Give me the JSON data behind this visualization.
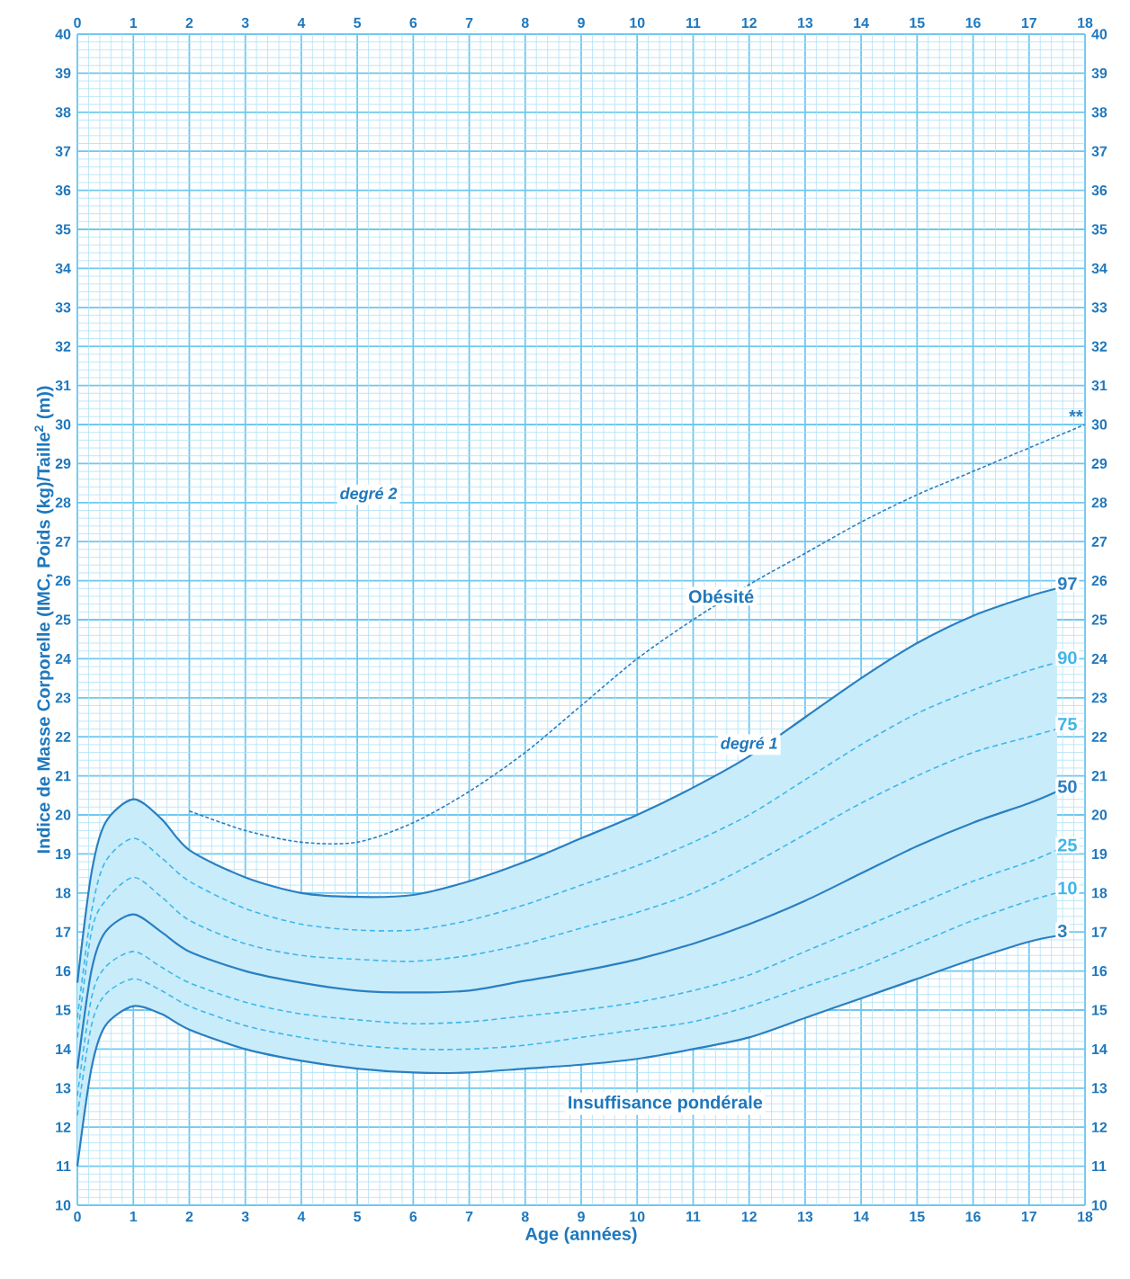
{
  "chart_data": {
    "type": "line",
    "xlabel": "Age (années)",
    "ylabel": "Indice de Masse Corporelle (IMC, Poids (kg)/Taille$^{2}$ (m))",
    "x": [
      0,
      0.25,
      0.5,
      1,
      1.5,
      2,
      3,
      4,
      5,
      6,
      7,
      8,
      9,
      10,
      11,
      12,
      13,
      14,
      15,
      16,
      17,
      17.5
    ],
    "series": [
      {
        "name": "97",
        "color": "#2a7fc1",
        "line_style": "solid",
        "values": [
          15.7,
          18.5,
          19.8,
          20.4,
          19.9,
          19.1,
          18.4,
          18.0,
          17.9,
          17.95,
          18.3,
          18.8,
          19.4,
          20.0,
          20.7,
          21.5,
          22.5,
          23.5,
          24.4,
          25.1,
          25.6,
          25.8
        ]
      },
      {
        "name": "90",
        "color": "#3fb6ea",
        "line_style": "dashed",
        "values": [
          14.8,
          17.5,
          18.8,
          19.4,
          18.9,
          18.3,
          17.6,
          17.2,
          17.05,
          17.05,
          17.3,
          17.7,
          18.2,
          18.7,
          19.3,
          20.0,
          20.9,
          21.8,
          22.6,
          23.2,
          23.7,
          23.9
        ]
      },
      {
        "name": "75",
        "color": "#3fb6ea",
        "line_style": "dashed",
        "values": [
          14.3,
          17.0,
          17.8,
          18.4,
          17.9,
          17.3,
          16.7,
          16.4,
          16.3,
          16.25,
          16.4,
          16.7,
          17.1,
          17.5,
          18.0,
          18.7,
          19.5,
          20.3,
          21.0,
          21.6,
          22.0,
          22.2
        ]
      },
      {
        "name": "50",
        "color": "#2a7fc1",
        "line_style": "solid",
        "values": [
          13.5,
          16.0,
          17.0,
          17.45,
          17.0,
          16.5,
          16.0,
          15.7,
          15.5,
          15.45,
          15.5,
          15.75,
          16.0,
          16.3,
          16.7,
          17.2,
          17.8,
          18.5,
          19.2,
          19.8,
          20.3,
          20.6
        ],
        "lower": [
          11.0,
          13.5,
          14.6,
          15.1,
          14.9,
          14.5,
          14.0,
          13.7,
          13.5,
          13.4,
          13.4,
          13.5,
          13.6,
          13.75,
          14.0,
          14.3,
          14.8,
          15.3,
          15.8,
          16.3,
          16.75,
          16.9
        ],
        "upper": [
          15.7,
          18.5,
          19.8,
          20.4,
          19.9,
          19.1,
          18.4,
          18.0,
          17.9,
          17.95,
          18.3,
          18.8,
          19.4,
          20.0,
          20.7,
          21.5,
          22.5,
          23.5,
          24.4,
          25.1,
          25.6,
          25.8
        ]
      },
      {
        "name": "25",
        "color": "#3fb6ea",
        "line_style": "dashed",
        "values": [
          12.8,
          15.3,
          16.1,
          16.5,
          16.1,
          15.7,
          15.2,
          14.9,
          14.75,
          14.65,
          14.7,
          14.85,
          15.0,
          15.2,
          15.5,
          15.9,
          16.5,
          17.1,
          17.7,
          18.3,
          18.8,
          19.1
        ]
      },
      {
        "name": "10",
        "color": "#3fb6ea",
        "line_style": "dashed",
        "values": [
          12.3,
          14.6,
          15.4,
          15.8,
          15.5,
          15.1,
          14.6,
          14.3,
          14.1,
          14.0,
          14.0,
          14.1,
          14.3,
          14.5,
          14.7,
          15.1,
          15.6,
          16.1,
          16.7,
          17.3,
          17.8,
          18.0
        ]
      },
      {
        "name": "3",
        "color": "#2a7fc1",
        "line_style": "solid",
        "values": [
          11.0,
          13.5,
          14.6,
          15.1,
          14.9,
          14.5,
          14.0,
          13.7,
          13.5,
          13.4,
          13.4,
          13.5,
          13.6,
          13.75,
          14.0,
          14.3,
          14.8,
          15.3,
          15.8,
          16.3,
          16.75,
          16.9
        ]
      },
      {
        "name": "**",
        "color": "#2a7fc1",
        "line_style": "dotted",
        "x": [
          2,
          3,
          4,
          5,
          6,
          7,
          8,
          9,
          10,
          11,
          12,
          13,
          14,
          15,
          16,
          17,
          18
        ],
        "values": [
          20.1,
          19.6,
          19.3,
          19.3,
          19.8,
          20.6,
          21.6,
          22.8,
          24.0,
          25.0,
          25.9,
          26.7,
          27.5,
          28.2,
          28.8,
          29.4,
          30.0
        ]
      }
    ],
    "annotations": [
      "degré 2",
      "Obésité",
      "degré 1",
      "Insuffisance pondérale"
    ],
    "xlim": [
      0,
      18
    ],
    "xticks": [
      0,
      1,
      2,
      3,
      4,
      5,
      6,
      7,
      8,
      9,
      10,
      11,
      12,
      13,
      14,
      15,
      16,
      17,
      18,
      {
        "value": 0.2,
        "label": null
      },
      {
        "value": 0.4,
        "label": null
      },
      {
        "value": 0.6,
        "label": null
      },
      {
        "value": 0.8,
        "label": null
      },
      {
        "value": 1.2,
        "label": null
      },
      {
        "value": 1.4,
        "label": null
      },
      {
        "value": 1.6,
        "label": null
      },
      {
        "value": 1.8,
        "label": null
      },
      {
        "value": 2.2,
        "label": null
      },
      {
        "value": 2.4,
        "label": null
      },
      {
        "value": 2.6,
        "label": null
      },
      {
        "value": 2.8,
        "label": null
      },
      {
        "value": 3.2,
        "label": null
      },
      {
        "value": 3.4,
        "label": null
      },
      {
        "value": 3.6,
        "label": null
      },
      {
        "value": 3.8,
        "label": null
      },
      {
        "value": 4.2,
        "label": null
      },
      {
        "value": 4.4,
        "label": null
      },
      {
        "value": 4.6,
        "label": null
      },
      {
        "value": 4.8,
        "label": null
      },
      {
        "value": 5.2,
        "label": null
      },
      {
        "value": 5.4,
        "label": null
      },
      {
        "value": 5.6,
        "label": null
      },
      {
        "value": 5.8,
        "label": null
      },
      {
        "value": 6.2,
        "label": null
      },
      {
        "value": 6.4,
        "label": null
      },
      {
        "value": 6.6,
        "label": null
      },
      {
        "value": 6.8,
        "label": null
      },
      {
        "value": 7.2,
        "label": null
      },
      {
        "value": 7.4,
        "label": null
      },
      {
        "value": 7.6,
        "label": null
      },
      {
        "value": 7.8,
        "label": null
      },
      {
        "value": 8.2,
        "label": null
      },
      {
        "value": 8.4,
        "label": null
      },
      {
        "value": 8.6,
        "label": null
      },
      {
        "value": 8.8,
        "label": null
      },
      {
        "value": 9.2,
        "label": null
      },
      {
        "value": 9.4,
        "label": null
      },
      {
        "value": 9.6,
        "label": null
      },
      {
        "value": 9.8,
        "label": null
      },
      {
        "value": 10.2,
        "label": null
      },
      {
        "value": 10.4,
        "label": null
      },
      {
        "value": 10.6,
        "label": null
      },
      {
        "value": 10.8,
        "label": null
      },
      {
        "value": 11.2,
        "label": null
      },
      {
        "value": 11.4,
        "label": null
      },
      {
        "value": 11.6,
        "label": null
      },
      {
        "value": 11.8,
        "label": null
      },
      {
        "value": 12.2,
        "label": null
      },
      {
        "value": 12.4,
        "label": null
      },
      {
        "value": 12.6,
        "label": null
      },
      {
        "value": 12.8,
        "label": null
      },
      {
        "value": 13.2,
        "label": null
      },
      {
        "value": 13.4,
        "label": null
      },
      {
        "value": 13.6,
        "label": null
      },
      {
        "value": 13.8,
        "label": null
      },
      {
        "value": 14.2,
        "label": null
      },
      {
        "value": 14.4,
        "label": null
      },
      {
        "value": 14.6,
        "label": null
      },
      {
        "value": 14.8,
        "label": null
      },
      {
        "value": 15.2,
        "label": null
      },
      {
        "value": 15.4,
        "label": null
      },
      {
        "value": 15.6,
        "label": null
      },
      {
        "value": 15.8,
        "label": null
      },
      {
        "value": 16.2,
        "label": null
      },
      {
        "value": 16.4,
        "label": null
      },
      {
        "value": 16.6,
        "label": null
      },
      {
        "value": 16.8,
        "label": null
      },
      {
        "value": 17.2,
        "label": null
      },
      {
        "value": 17.4,
        "label": null
      },
      {
        "value": 17.6,
        "label": null
      },
      {
        "value": 17.8,
        "label": null
      }
    ],
    "x2lim": [
      0,
      18
    ],
    "x2ticks": [
      0,
      1,
      2,
      3,
      4,
      5,
      6,
      7,
      8,
      9,
      10,
      11,
      12,
      13,
      14,
      15,
      16,
      17,
      18
    ],
    "ylim": [
      10,
      40
    ],
    "yticks": [
      10,
      11,
      12,
      13,
      14,
      15,
      16,
      17,
      18,
      19,
      20,
      21,
      22,
      23,
      24,
      25,
      26,
      27,
      28,
      29,
      30,
      31,
      32,
      33,
      34,
      35,
      36,
      37,
      38,
      39,
      40,
      {
        "value": 10.2,
        "label": null
      },
      {
        "value": 10.4,
        "label": null
      },
      {
        "value": 10.6,
        "label": null
      },
      {
        "value": 10.8,
        "label": null
      },
      {
        "value": 11.2,
        "label": null
      },
      {
        "value": 11.4,
        "label": null
      },
      {
        "value": 11.6,
        "label": null
      },
      {
        "value": 11.8,
        "label": null
      },
      {
        "value": 12.2,
        "label": null
      },
      {
        "value": 12.4,
        "label": null
      },
      {
        "value": 12.6,
        "label": null
      },
      {
        "value": 12.8,
        "label": null
      },
      {
        "value": 13.2,
        "label": null
      },
      {
        "value": 13.4,
        "label": null
      },
      {
        "value": 13.6,
        "label": null
      },
      {
        "value": 13.8,
        "label": null
      },
      {
        "value": 14.2,
        "label": null
      },
      {
        "value": 14.4,
        "label": null
      },
      {
        "value": 14.6,
        "label": null
      },
      {
        "value": 14.8,
        "label": null
      },
      {
        "value": 15.2,
        "label": null
      },
      {
        "value": 15.4,
        "label": null
      },
      {
        "value": 15.6,
        "label": null
      },
      {
        "value": 15.8,
        "label": null
      },
      {
        "value": 16.2,
        "label": null
      },
      {
        "value": 16.4,
        "label": null
      },
      {
        "value": 16.6,
        "label": null
      },
      {
        "value": 16.8,
        "label": null
      },
      {
        "value": 17.2,
        "label": null
      },
      {
        "value": 17.4,
        "label": null
      },
      {
        "value": 17.6,
        "label": null
      },
      {
        "value": 17.8,
        "label": null
      },
      {
        "value": 18.2,
        "label": null
      },
      {
        "value": 18.4,
        "label": null
      },
      {
        "value": 18.6,
        "label": null
      },
      {
        "value": 18.8,
        "label": null
      },
      {
        "value": 19.2,
        "label": null
      },
      {
        "value": 19.4,
        "label": null
      },
      {
        "value": 19.6,
        "label": null
      },
      {
        "value": 19.8,
        "label": null
      },
      {
        "value": 20.2,
        "label": null
      },
      {
        "value": 20.4,
        "label": null
      },
      {
        "value": 20.6,
        "label": null
      },
      {
        "value": 20.8,
        "label": null
      },
      {
        "value": 21.2,
        "label": null
      },
      {
        "value": 21.4,
        "label": null
      },
      {
        "value": 21.6,
        "label": null
      },
      {
        "value": 21.8,
        "label": null
      },
      {
        "value": 22.2,
        "label": null
      },
      {
        "value": 22.4,
        "label": null
      },
      {
        "value": 22.6,
        "label": null
      },
      {
        "value": 22.8,
        "label": null
      },
      {
        "value": 23.2,
        "label": null
      },
      {
        "value": 23.4,
        "label": null
      },
      {
        "value": 23.6,
        "label": null
      },
      {
        "value": 23.8,
        "label": null
      },
      {
        "value": 24.2,
        "label": null
      },
      {
        "value": 24.4,
        "label": null
      },
      {
        "value": 24.6,
        "label": null
      },
      {
        "value": 24.8,
        "label": null
      },
      {
        "value": 25.2,
        "label": null
      },
      {
        "value": 25.4,
        "label": null
      },
      {
        "value": 25.6,
        "label": null
      },
      {
        "value": 25.8,
        "label": null
      },
      {
        "value": 26.2,
        "label": null
      },
      {
        "value": 26.4,
        "label": null
      },
      {
        "value": 26.6,
        "label": null
      },
      {
        "value": 26.8,
        "label": null
      },
      {
        "value": 27.2,
        "label": null
      },
      {
        "value": 27.4,
        "label": null
      },
      {
        "value": 27.6,
        "label": null
      },
      {
        "value": 27.8,
        "label": null
      },
      {
        "value": 28.2,
        "label": null
      },
      {
        "value": 28.4,
        "label": null
      },
      {
        "value": 28.6,
        "label": null
      },
      {
        "value": 28.8,
        "label": null
      },
      {
        "value": 29.2,
        "label": null
      },
      {
        "value": 29.4,
        "label": null
      },
      {
        "value": 29.6,
        "label": null
      },
      {
        "value": 29.8,
        "label": null
      },
      {
        "value": 30.2,
        "label": null
      },
      {
        "value": 30.4,
        "label": null
      },
      {
        "value": 30.6,
        "label": null
      },
      {
        "value": 30.8,
        "label": null
      },
      {
        "value": 31.2,
        "label": null
      },
      {
        "value": 31.4,
        "label": null
      },
      {
        "value": 31.6,
        "label": null
      },
      {
        "value": 31.8,
        "label": null
      },
      {
        "value": 32.2,
        "label": null
      },
      {
        "value": 32.4,
        "label": null
      },
      {
        "value": 32.6,
        "label": null
      },
      {
        "value": 32.8,
        "label": null
      },
      {
        "value": 33.2,
        "label": null
      },
      {
        "value": 33.4,
        "label": null
      },
      {
        "value": 33.6,
        "label": null
      },
      {
        "value": 33.8,
        "label": null
      },
      {
        "value": 34.2,
        "label": null
      },
      {
        "value": 34.4,
        "label": null
      },
      {
        "value": 34.6,
        "label": null
      },
      {
        "value": 34.8,
        "label": null
      },
      {
        "value": 35.2,
        "label": null
      },
      {
        "value": 35.4,
        "label": null
      },
      {
        "value": 35.6,
        "label": null
      },
      {
        "value": 35.8,
        "label": null
      },
      {
        "value": 36.2,
        "label": null
      },
      {
        "value": 36.4,
        "label": null
      },
      {
        "value": 36.6,
        "label": null
      },
      {
        "value": 36.8,
        "label": null
      },
      {
        "value": 37.2,
        "label": null
      },
      {
        "value": 37.4,
        "label": null
      },
      {
        "value": 37.6,
        "label": null
      },
      {
        "value": 37.8,
        "label": null
      },
      {
        "value": 38.2,
        "label": null
      },
      {
        "value": 38.4,
        "label": null
      },
      {
        "value": 38.6,
        "label": null
      },
      {
        "value": 38.8,
        "label": null
      },
      {
        "value": 39.2,
        "label": null
      },
      {
        "value": 39.4,
        "label": null
      },
      {
        "value": 39.6,
        "label": null
      },
      {
        "value": 39.8,
        "label": null
      }
    ],
    "y2lim": [
      10,
      40
    ],
    "y2ticks": [
      10,
      11,
      12,
      13,
      14,
      15,
      16,
      17,
      18,
      19,
      20,
      21,
      22,
      23,
      24,
      25,
      26,
      27,
      28,
      29,
      30,
      31,
      32,
      33,
      34,
      35,
      36,
      37,
      38,
      39,
      40
    ],
    "grid": true,
    "marker": "none"
  }
}
